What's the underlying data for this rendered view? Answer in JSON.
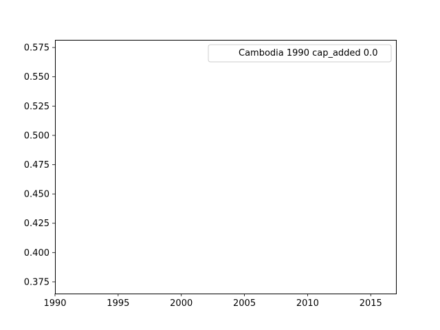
{
  "chart_data": {
    "type": "line",
    "title": "",
    "xlabel": "",
    "ylabel": "",
    "xlim": [
      1990,
      2017
    ],
    "ylim": [
      0.365,
      0.5815
    ],
    "xticks": [
      "1990",
      "1995",
      "2000",
      "2005",
      "2010",
      "2015"
    ],
    "yticks": [
      "0.375",
      "0.400",
      "0.425",
      "0.450",
      "0.475",
      "0.500",
      "0.525",
      "0.550",
      "0.575"
    ],
    "grid": false,
    "legend": {
      "position": "top-right",
      "entries": [
        "Cambodia 1990 cap_added 0.0"
      ]
    },
    "series": [
      {
        "name": "Cambodia 1990 cap_added 0.0",
        "x": [],
        "y": [],
        "color": "#ffffff"
      }
    ]
  }
}
